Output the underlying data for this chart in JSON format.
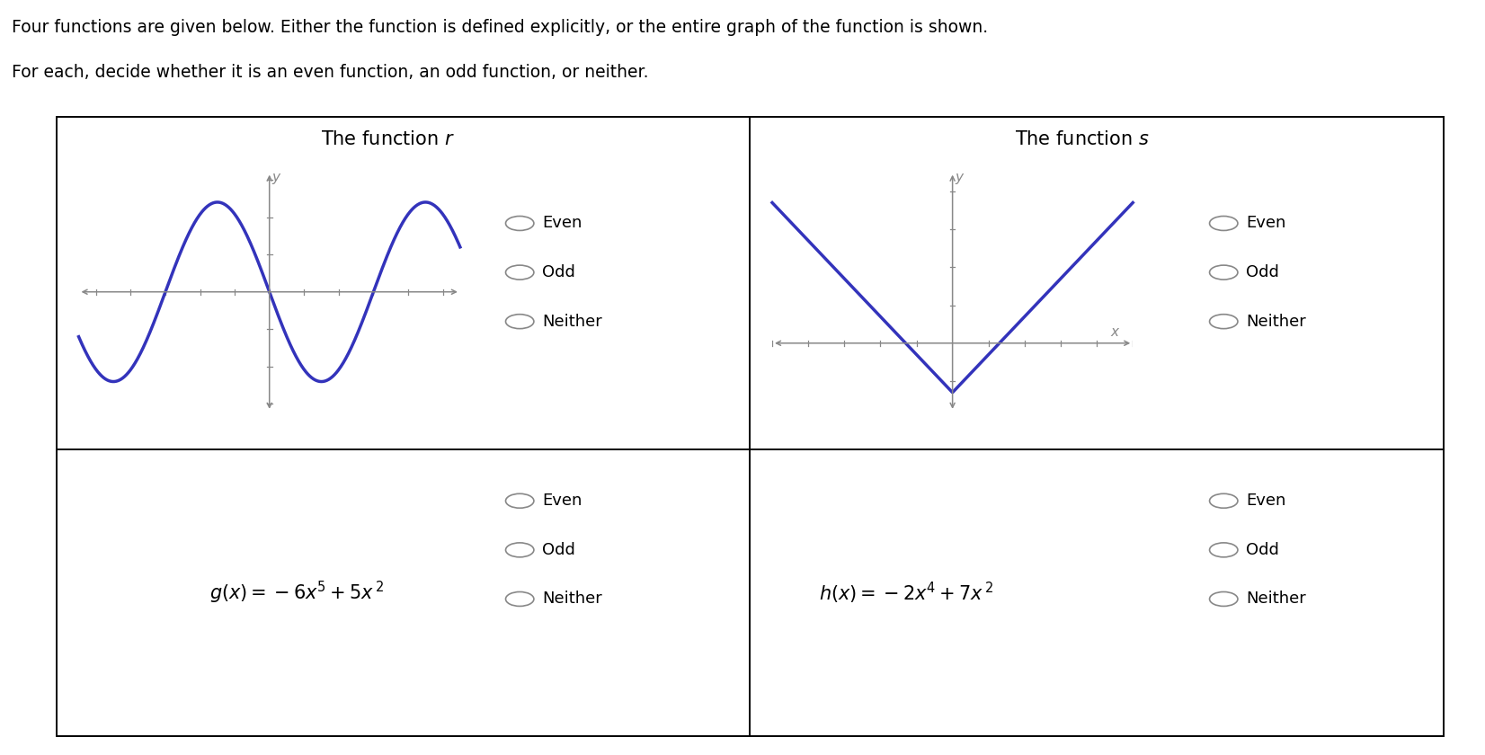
{
  "title_line1": "Four functions are given below. Either the function is defined explicitly, or the entire graph of the function is shown.",
  "title_line2": "For each, decide whether it is an even function, an odd function, or neither.",
  "bg_color": "#ffffff",
  "curve_color": "#3333bb",
  "axis_color": "#888888",
  "text_color": "#000000",
  "radio_color": "#888888",
  "box_color": "#000000",
  "radio_options": [
    "Even",
    "Odd",
    "Neither"
  ],
  "font_size_header": 13.5,
  "font_size_cell_title": 15,
  "font_size_radio": 13,
  "font_size_formula": 14,
  "font_size_axis_label": 11
}
